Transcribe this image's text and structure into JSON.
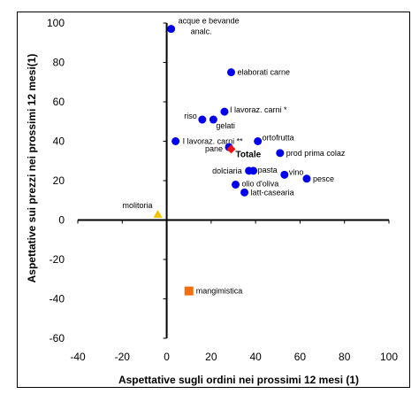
{
  "chart_data": {
    "type": "scatter",
    "title": "",
    "xlabel": "Aspettative sugli ordini nei prossimi 12 mesi (1)",
    "ylabel": "Aspettative sui prezzi nei prossimi 12 mesi(1)",
    "xlim": [
      -40,
      100
    ],
    "ylim": [
      -60,
      100
    ],
    "x_ticks": [
      "-40",
      "-20",
      "0",
      "20",
      "40",
      "60",
      "80",
      "100"
    ],
    "y_ticks": [
      "100",
      "80",
      "60",
      "40",
      "20",
      "0",
      "-20",
      "-40",
      "-60"
    ],
    "grid": false,
    "legend": "none",
    "colors": {
      "default": "#0000ee",
      "totale": "#ee1111",
      "molitoria": "#f2c200",
      "mangimistica": "#f26f0c",
      "axis": "#000000"
    },
    "points": [
      {
        "label": "acque e bevande analc.",
        "lines": [
          "acque e bevande",
          "analc."
        ],
        "x": 2,
        "y": 97,
        "marker": "circle",
        "color": "#0000ee"
      },
      {
        "label": "elaborati carne",
        "lines": [
          "elaborati carne"
        ],
        "x": 29,
        "y": 75,
        "marker": "circle",
        "color": "#0000ee"
      },
      {
        "label": "I lavoraz. carni *",
        "lines": [
          "I lavoraz. carni *"
        ],
        "x": 26,
        "y": 55,
        "marker": "circle",
        "color": "#0000ee"
      },
      {
        "label": "riso",
        "lines": [
          "riso"
        ],
        "x": 16,
        "y": 51,
        "marker": "circle",
        "color": "#0000ee"
      },
      {
        "label": "gelati",
        "lines": [
          "gelati"
        ],
        "x": 21,
        "y": 51,
        "marker": "circle",
        "color": "#0000ee"
      },
      {
        "label": "I lavoraz. carni **",
        "lines": [
          "I lavoraz. carni **"
        ],
        "x": 4,
        "y": 40,
        "marker": "circle",
        "color": "#0000ee"
      },
      {
        "label": "ortofrutta",
        "lines": [
          "ortofrutta"
        ],
        "x": 41,
        "y": 40,
        "marker": "circle",
        "color": "#0000ee"
      },
      {
        "label": "pane",
        "lines": [
          "pane"
        ],
        "x": 28,
        "y": 37,
        "marker": "circle",
        "color": "#0000ee"
      },
      {
        "label": "Totale",
        "lines": [
          "Totale"
        ],
        "x": 29,
        "y": 36,
        "marker": "diamond",
        "color": "#ee1111"
      },
      {
        "label": "prod prima colaz",
        "lines": [
          "prod prima colaz"
        ],
        "x": 51,
        "y": 34,
        "marker": "circle",
        "color": "#0000ee"
      },
      {
        "label": "dolciaria",
        "lines": [
          "dolciaria"
        ],
        "x": 37,
        "y": 25,
        "marker": "circle",
        "color": "#0000ee"
      },
      {
        "label": "pasta",
        "lines": [
          "pasta"
        ],
        "x": 39,
        "y": 25,
        "marker": "circle",
        "color": "#0000ee"
      },
      {
        "label": "vino",
        "lines": [
          "vino"
        ],
        "x": 53,
        "y": 23,
        "marker": "circle",
        "color": "#0000ee"
      },
      {
        "label": "pesce",
        "lines": [
          "pesce"
        ],
        "x": 63,
        "y": 21,
        "marker": "circle",
        "color": "#0000ee"
      },
      {
        "label": "olio d'oliva",
        "lines": [
          "olio d'oliva"
        ],
        "x": 31,
        "y": 18,
        "marker": "circle",
        "color": "#0000ee"
      },
      {
        "label": "latt-casearia",
        "lines": [
          "latt-casearia"
        ],
        "x": 35,
        "y": 14,
        "marker": "circle",
        "color": "#0000ee"
      },
      {
        "label": "molitoria",
        "lines": [
          "molitoria"
        ],
        "x": -4,
        "y": 3,
        "marker": "triangle",
        "color": "#f2c200"
      },
      {
        "label": "mangimistica",
        "lines": [
          "mangimistica"
        ],
        "x": 10,
        "y": -36,
        "marker": "square",
        "color": "#f26f0c"
      }
    ]
  }
}
